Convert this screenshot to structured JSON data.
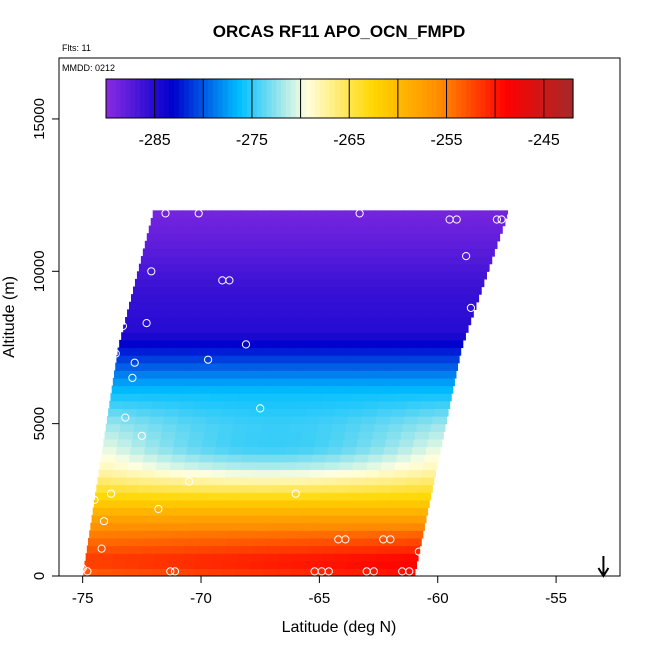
{
  "chart_data": {
    "type": "heatmap",
    "title": "ORCAS RF11 APO_OCN_FMPD",
    "annotations": {
      "flights": "Flts: 11",
      "date": "MMDD: 0212"
    },
    "xlabel": "Latitude (deg N)",
    "ylabel": "Altitude (m)",
    "xlim": [
      -76,
      -52.3
    ],
    "ylim": [
      0,
      17000
    ],
    "x_ticks": [
      -75,
      -70,
      -65,
      -60,
      -55
    ],
    "x_tick_labels": [
      "-75",
      "-70",
      "-65",
      "-60",
      "-55"
    ],
    "y_ticks": [
      0,
      5000,
      10000,
      15000
    ],
    "y_tick_labels": [
      "0",
      "5000",
      "10000",
      "15000"
    ],
    "colorbar": {
      "placement": "top-inside",
      "range": [
        -290,
        -242
      ],
      "ticks": [
        -285,
        -275,
        -265,
        -255,
        -245
      ],
      "tick_labels": [
        "-285",
        "-275",
        "-265",
        "-255",
        "-245"
      ],
      "colors": [
        "#8a2be2",
        "#0000cd",
        "#00bfff",
        "#ffffe0",
        "#ffd700",
        "#ff8c00",
        "#ff0000",
        "#a52a2a"
      ]
    },
    "field_region": {
      "lower_edge": [
        [
          -75,
          0
        ],
        [
          -73.5,
          7500
        ],
        [
          -72,
          12000
        ]
      ],
      "upper_edge": [
        [
          -61,
          0
        ],
        [
          -59,
          7500
        ],
        [
          -57,
          12000
        ]
      ]
    },
    "field_profile": [
      {
        "altitude": 0,
        "value": -252
      },
      {
        "altitude": 500,
        "value": -250
      },
      {
        "altitude": 1500,
        "value": -255
      },
      {
        "altitude": 2500,
        "value": -262
      },
      {
        "altitude": 3500,
        "value": -268
      },
      {
        "altitude": 5000,
        "value": -272
      },
      {
        "altitude": 6500,
        "value": -278
      },
      {
        "altitude": 8000,
        "value": -285
      },
      {
        "altitude": 9500,
        "value": -286
      },
      {
        "altitude": 11000,
        "value": -288
      },
      {
        "altitude": 12000,
        "value": -289
      }
    ],
    "samples": [
      [
        -75.0,
        250
      ],
      [
        -74.8,
        150
      ],
      [
        -74.5,
        2500
      ],
      [
        -74.2,
        900
      ],
      [
        -74.1,
        1800
      ],
      [
        -73.8,
        2700
      ],
      [
        -73.6,
        7300
      ],
      [
        -73.3,
        8200
      ],
      [
        -73.2,
        5200
      ],
      [
        -72.9,
        6500
      ],
      [
        -72.8,
        7000
      ],
      [
        -72.5,
        4600
      ],
      [
        -72.3,
        8300
      ],
      [
        -72.1,
        10000
      ],
      [
        -71.8,
        2200
      ],
      [
        -71.5,
        11900
      ],
      [
        -71.3,
        150
      ],
      [
        -71.1,
        150
      ],
      [
        -70.5,
        3100
      ],
      [
        -70.1,
        11900
      ],
      [
        -69.7,
        7100
      ],
      [
        -69.1,
        9700
      ],
      [
        -68.8,
        9700
      ],
      [
        -68.1,
        7600
      ],
      [
        -67.5,
        5500
      ],
      [
        -66.0,
        2700
      ],
      [
        -65.2,
        150
      ],
      [
        -64.9,
        150
      ],
      [
        -64.6,
        150
      ],
      [
        -64.2,
        1200
      ],
      [
        -63.9,
        1200
      ],
      [
        -63.3,
        11900
      ],
      [
        -63.0,
        150
      ],
      [
        -62.7,
        150
      ],
      [
        -62.3,
        1200
      ],
      [
        -62.0,
        1200
      ],
      [
        -61.5,
        150
      ],
      [
        -61.2,
        150
      ],
      [
        -60.8,
        800
      ],
      [
        -59.5,
        11700
      ],
      [
        -59.2,
        11700
      ],
      [
        -58.8,
        10500
      ],
      [
        -58.6,
        8800
      ],
      [
        -58.3,
        8000
      ],
      [
        -58.1,
        8200
      ],
      [
        -57.7,
        9900
      ],
      [
        -57.5,
        11700
      ],
      [
        -57.3,
        11700
      ],
      [
        -56.9,
        11800
      ],
      [
        -56.8,
        12000
      ]
    ],
    "marker": {
      "x": -53,
      "type": "down-arrow"
    }
  }
}
